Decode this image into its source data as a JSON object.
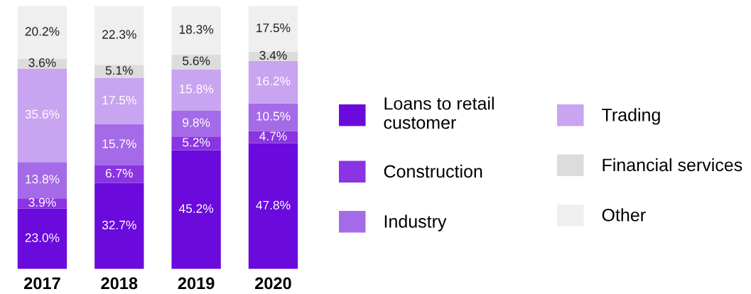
{
  "chart_data": {
    "type": "bar",
    "stacked": true,
    "categories": [
      "2017",
      "2018",
      "2019",
      "2020"
    ],
    "tick_labels": "x",
    "legend": "right",
    "grid": false,
    "series": [
      {
        "name": "Loans to retail customer",
        "color": "#6a0adc",
        "values": [
          23.0,
          32.7,
          45.2,
          47.8
        ],
        "value_labels": [
          "23.0%",
          "32.7%",
          "45.2%",
          "47.8%"
        ]
      },
      {
        "name": "Construction",
        "color": "#8a34e2",
        "values": [
          3.9,
          6.7,
          5.2,
          4.7
        ],
        "value_labels": [
          "3.9%",
          "6.7%",
          "5.2%",
          "4.7%"
        ]
      },
      {
        "name": "Industry",
        "color": "#a56ae8",
        "values": [
          13.8,
          15.7,
          9.8,
          10.5
        ],
        "value_labels": [
          "13.8%",
          "15.7%",
          "9.8%",
          "10.5%"
        ]
      },
      {
        "name": "Trading",
        "color": "#c9a4f1",
        "values": [
          35.6,
          17.5,
          15.8,
          16.2
        ],
        "value_labels": [
          "35.6%",
          "17.5%",
          "15.8%",
          "16.2%"
        ]
      },
      {
        "name": "Financial services",
        "color": "#dcdcdc",
        "values": [
          3.6,
          5.1,
          5.6,
          3.4
        ],
        "value_labels": [
          "3.6%",
          "5.1%",
          "5.6%",
          "3.4%"
        ]
      },
      {
        "name": "Other",
        "color": "#efefef",
        "values": [
          20.2,
          22.3,
          18.3,
          17.5
        ],
        "value_labels": [
          "20.2%",
          "22.3%",
          "18.3%",
          "17.5%"
        ]
      }
    ]
  }
}
